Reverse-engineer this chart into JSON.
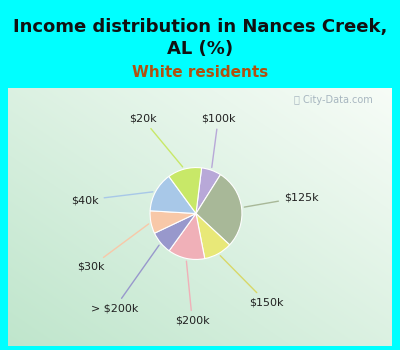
{
  "title": "Income distribution in Nances Creek,\nAL (%)",
  "subtitle": "White residents",
  "watermark": "ⓘ City-Data.com",
  "slices": [
    {
      "label": "$100k",
      "value": 7,
      "color": "#b8a8d8"
    },
    {
      "label": "$125k",
      "value": 28,
      "color": "#a8b898"
    },
    {
      "label": "$150k",
      "value": 10,
      "color": "#e8e878"
    },
    {
      "label": "$200k",
      "value": 13,
      "color": "#f0b0b8"
    },
    {
      "label": "> $200k",
      "value": 8,
      "color": "#9898cc"
    },
    {
      "label": "$30k",
      "value": 8,
      "color": "#f8c8a8"
    },
    {
      "label": "$40k",
      "value": 14,
      "color": "#a8c8e8"
    },
    {
      "label": "$20k",
      "value": 12,
      "color": "#c8e868"
    }
  ],
  "label_fontsize": 8,
  "title_fontsize": 13,
  "subtitle_fontsize": 11,
  "title_color": "#111111",
  "subtitle_color": "#b05010",
  "label_color": "#222222",
  "fig_bg": "#00ffff",
  "chart_bg_center": "#f0f8f0",
  "chart_bg_corner": "#b8dcc8",
  "startangle": 83
}
